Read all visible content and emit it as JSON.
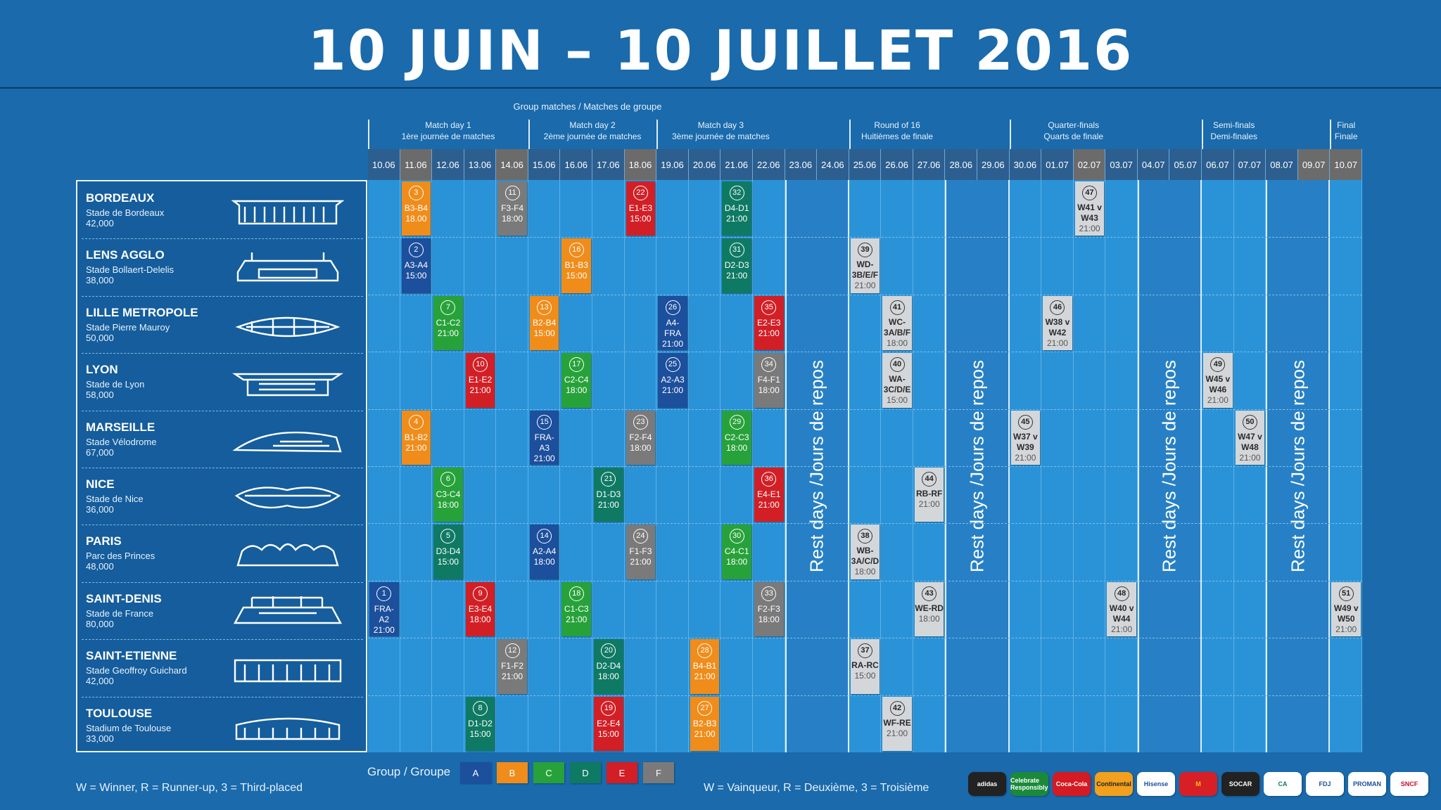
{
  "title": "10 JUIN – 10 JUILLET 2016",
  "group_matches_caption": "Group matches / Matches de groupe",
  "phases": [
    {
      "en": "Match day 1",
      "fr": "1ère journée de matches"
    },
    {
      "en": "Match day 2",
      "fr": "2ème journée de matches"
    },
    {
      "en": "Match day 3",
      "fr": "3ème journée de matches"
    },
    {
      "en": "Round of 16",
      "fr": "Huitièmes de finale"
    },
    {
      "en": "Quarter-finals",
      "fr": "Quarts de finale"
    },
    {
      "en": "Semi-finals",
      "fr": "Demi-finales"
    },
    {
      "en": "Final",
      "fr": "Finale"
    }
  ],
  "dates": [
    "10.06",
    "11.06",
    "12.06",
    "13.06",
    "14.06",
    "15.06",
    "16.06",
    "17.06",
    "18.06",
    "19.06",
    "20.06",
    "21.06",
    "22.06",
    "23.06",
    "24.06",
    "25.06",
    "26.06",
    "27.06",
    "28.06",
    "29.06",
    "30.06",
    "01.07",
    "02.07",
    "03.07",
    "04.07",
    "05.07",
    "06.07",
    "07.07",
    "08.07",
    "09.07",
    "10.07"
  ],
  "rest_days_label": "Rest days /Jours de repos",
  "cities": [
    {
      "name": "BORDEAUX",
      "stadium": "Stade de Bordeaux",
      "capacity": "42,000",
      "icon": "stadium-bordeaux-icon"
    },
    {
      "name": "LENS AGGLO",
      "stadium": "Stade Bollaert-Delelis",
      "capacity": "38,000",
      "icon": "stadium-lens-icon"
    },
    {
      "name": "LILLE METROPOLE",
      "stadium": "Stade Pierre Mauroy",
      "capacity": "50,000",
      "icon": "stadium-lille-icon"
    },
    {
      "name": "LYON",
      "stadium": "Stade de Lyon",
      "capacity": "58,000",
      "icon": "stadium-lyon-icon"
    },
    {
      "name": "MARSEILLE",
      "stadium": "Stade Vélodrome",
      "capacity": "67,000",
      "icon": "stadium-marseille-icon"
    },
    {
      "name": "NICE",
      "stadium": "Stade de Nice",
      "capacity": "36,000",
      "icon": "stadium-nice-icon"
    },
    {
      "name": "PARIS",
      "stadium": "Parc des Princes",
      "capacity": "48,000",
      "icon": "stadium-paris-icon"
    },
    {
      "name": "SAINT-DENIS",
      "stadium": "Stade de France",
      "capacity": "80,000",
      "icon": "stadium-saint-denis-icon"
    },
    {
      "name": "SAINT-ETIENNE",
      "stadium": "Stade Geoffroy Guichard",
      "capacity": "42,000",
      "icon": "stadium-saint-etienne-icon"
    },
    {
      "name": "TOULOUSE",
      "stadium": "Stadium de Toulouse",
      "capacity": "33,000",
      "icon": "stadium-toulouse-icon"
    }
  ],
  "group_colors": {
    "A": "#1c4f9c",
    "B": "#f08c1a",
    "C": "#27a23a",
    "D": "#0f7a63",
    "E": "#d21f26",
    "F": "#7a7a7a"
  },
  "matches": [
    {
      "n": "1",
      "teams": "FRA-A2",
      "time": "21:00",
      "group": "A",
      "city": 7,
      "date": 0
    },
    {
      "n": "2",
      "teams": "A3-A4",
      "time": "15:00",
      "group": "A",
      "city": 1,
      "date": 1
    },
    {
      "n": "3",
      "teams": "B3-B4",
      "time": "18.00",
      "group": "B",
      "city": 0,
      "date": 1
    },
    {
      "n": "4",
      "teams": "B1-B2",
      "time": "21:00",
      "group": "B",
      "city": 4,
      "date": 1
    },
    {
      "n": "5",
      "teams": "D3-D4",
      "time": "15:00",
      "group": "D",
      "city": 6,
      "date": 2
    },
    {
      "n": "6",
      "teams": "C3-C4",
      "time": "18:00",
      "group": "C",
      "city": 5,
      "date": 2
    },
    {
      "n": "7",
      "teams": "C1-C2",
      "time": "21:00",
      "group": "C",
      "city": 2,
      "date": 2
    },
    {
      "n": "8",
      "teams": "D1-D2",
      "time": "15:00",
      "group": "D",
      "city": 9,
      "date": 3
    },
    {
      "n": "9",
      "teams": "E3-E4",
      "time": "18:00",
      "group": "E",
      "city": 7,
      "date": 3
    },
    {
      "n": "10",
      "teams": "E1-E2",
      "time": "21:00",
      "group": "E",
      "city": 3,
      "date": 3
    },
    {
      "n": "11",
      "teams": "F3-F4",
      "time": "18:00",
      "group": "F",
      "city": 0,
      "date": 4
    },
    {
      "n": "12",
      "teams": "F1-F2",
      "time": "21:00",
      "group": "F",
      "city": 8,
      "date": 4
    },
    {
      "n": "13",
      "teams": "B2-B4",
      "time": "15:00",
      "group": "B",
      "city": 2,
      "date": 5
    },
    {
      "n": "14",
      "teams": "A2-A4",
      "time": "18:00",
      "group": "A",
      "city": 6,
      "date": 5
    },
    {
      "n": "15",
      "teams": "FRA-A3",
      "time": "21:00",
      "group": "A",
      "city": 4,
      "date": 5
    },
    {
      "n": "16",
      "teams": "B1-B3",
      "time": "15:00",
      "group": "B",
      "city": 1,
      "date": 6
    },
    {
      "n": "17",
      "teams": "C2-C4",
      "time": "18:00",
      "group": "C",
      "city": 3,
      "date": 6
    },
    {
      "n": "18",
      "teams": "C1-C3",
      "time": "21:00",
      "group": "C",
      "city": 7,
      "date": 6
    },
    {
      "n": "19",
      "teams": "E2-E4",
      "time": "15:00",
      "group": "E",
      "city": 9,
      "date": 7
    },
    {
      "n": "20",
      "teams": "D2-D4",
      "time": "18:00",
      "group": "D",
      "city": 8,
      "date": 7
    },
    {
      "n": "21",
      "teams": "D1-D3",
      "time": "21:00",
      "group": "D",
      "city": 5,
      "date": 7
    },
    {
      "n": "22",
      "teams": "E1-E3",
      "time": "15:00",
      "group": "E",
      "city": 0,
      "date": 8
    },
    {
      "n": "23",
      "teams": "F2-F4",
      "time": "18:00",
      "group": "F",
      "city": 4,
      "date": 8
    },
    {
      "n": "24",
      "teams": "F1-F3",
      "time": "21:00",
      "group": "F",
      "city": 6,
      "date": 8
    },
    {
      "n": "25",
      "teams": "A2-A3",
      "time": "21:00",
      "group": "A",
      "city": 3,
      "date": 9
    },
    {
      "n": "26",
      "teams": "A4-FRA",
      "time": "21:00",
      "group": "A",
      "city": 2,
      "date": 9
    },
    {
      "n": "27",
      "teams": "B2-B3",
      "time": "21:00",
      "group": "B",
      "city": 9,
      "date": 10
    },
    {
      "n": "28",
      "teams": "B4-B1",
      "time": "21:00",
      "group": "B",
      "city": 8,
      "date": 10
    },
    {
      "n": "29",
      "teams": "C2-C3",
      "time": "18:00",
      "group": "C",
      "city": 4,
      "date": 11
    },
    {
      "n": "30",
      "teams": "C4-C1",
      "time": "18:00",
      "group": "C",
      "city": 6,
      "date": 11
    },
    {
      "n": "31",
      "teams": "D2-D3",
      "time": "21:00",
      "group": "D",
      "city": 1,
      "date": 11
    },
    {
      "n": "32",
      "teams": "D4-D1",
      "time": "21:00",
      "group": "D",
      "city": 0,
      "date": 11
    },
    {
      "n": "33",
      "teams": "F2-F3",
      "time": "18:00",
      "group": "F",
      "city": 7,
      "date": 12
    },
    {
      "n": "34",
      "teams": "F4-F1",
      "time": "18:00",
      "group": "F",
      "city": 3,
      "date": 12
    },
    {
      "n": "35",
      "teams": "E2-E3",
      "time": "21:00",
      "group": "E",
      "city": 2,
      "date": 12
    },
    {
      "n": "36",
      "teams": "E4-E1",
      "time": "21:00",
      "group": "E",
      "city": 5,
      "date": 12
    }
  ],
  "knockout": [
    {
      "n": "37",
      "line1": "RA-RC",
      "line2": "",
      "time": "15:00",
      "city": 8,
      "date": 15
    },
    {
      "n": "38",
      "line1": "WB-",
      "line2": "3A/C/D",
      "time": "18:00",
      "city": 6,
      "date": 15
    },
    {
      "n": "39",
      "line1": "WD-",
      "line2": "3B/E/F",
      "time": "21:00",
      "city": 1,
      "date": 15
    },
    {
      "n": "40",
      "line1": "WA-",
      "line2": "3C/D/E",
      "time": "15:00",
      "city": 3,
      "date": 16
    },
    {
      "n": "41",
      "line1": "WC-",
      "line2": "3A/B/F",
      "time": "18:00",
      "city": 2,
      "date": 16
    },
    {
      "n": "42",
      "line1": "WF-RE",
      "line2": "",
      "time": "21:00",
      "city": 9,
      "date": 16
    },
    {
      "n": "43",
      "line1": "WE-RD",
      "line2": "",
      "time": "18:00",
      "city": 7,
      "date": 17
    },
    {
      "n": "44",
      "line1": "RB-RF",
      "line2": "",
      "time": "21:00",
      "city": 5,
      "date": 17
    },
    {
      "n": "45",
      "line1": "W37 v",
      "line2": "W39",
      "time": "21:00",
      "city": 4,
      "date": 20
    },
    {
      "n": "46",
      "line1": "W38 v",
      "line2": "W42",
      "time": "21:00",
      "city": 2,
      "date": 21
    },
    {
      "n": "47",
      "line1": "W41 v",
      "line2": "W43",
      "time": "21:00",
      "city": 0,
      "date": 22
    },
    {
      "n": "48",
      "line1": "W40 v",
      "line2": "W44",
      "time": "21:00",
      "city": 7,
      "date": 23
    },
    {
      "n": "49",
      "line1": "W45 v",
      "line2": "W46",
      "time": "21:00",
      "city": 3,
      "date": 26
    },
    {
      "n": "50",
      "line1": "W47 v",
      "line2": "W48",
      "time": "21:00",
      "city": 4,
      "date": 27
    },
    {
      "n": "51",
      "line1": "W49 v",
      "line2": "W50",
      "time": "21:00",
      "city": 7,
      "date": 30
    }
  ],
  "legend": {
    "group_label": "Group / Groupe",
    "groups": [
      "A",
      "B",
      "C",
      "D",
      "E",
      "F"
    ],
    "en": "W = Winner, R = Runner-up, 3 = Third-placed",
    "fr": "W = Vainqueur, R = Deuxième, 3 = Troisième"
  },
  "sponsors": [
    {
      "label": "adidas",
      "bg": "#222222",
      "fg": "#ffffff",
      "icon": "adidas-logo-icon"
    },
    {
      "label": "Celebrate Responsibly",
      "bg": "#1a8a3a",
      "fg": "#ffffff",
      "icon": "carlsberg-logo-icon"
    },
    {
      "label": "Coca-Cola",
      "bg": "#d41a23",
      "fg": "#ffffff",
      "icon": "coca-cola-logo-icon"
    },
    {
      "label": "Continental",
      "bg": "#f2a01d",
      "fg": "#222222",
      "icon": "continental-logo-icon"
    },
    {
      "label": "Hisense",
      "bg": "#ffffff",
      "fg": "#1a4f9c",
      "icon": "hisense-logo-icon"
    },
    {
      "label": "M",
      "bg": "#d91f26",
      "fg": "#f7c61b",
      "icon": "mcdonalds-logo-icon"
    },
    {
      "label": "SOCAR",
      "bg": "#222222",
      "fg": "#ffffff",
      "icon": "socar-logo-icon"
    },
    {
      "label": "CA",
      "bg": "#ffffff",
      "fg": "#0b7a6a",
      "icon": "credit-agricole-logo-icon"
    },
    {
      "label": "FDJ",
      "bg": "#ffffff",
      "fg": "#1a4f9c",
      "icon": "fdj-logo-icon"
    },
    {
      "label": "PROMAN",
      "bg": "#ffffff",
      "fg": "#1a4f9c",
      "icon": "proman-logo-icon"
    },
    {
      "label": "SNCF",
      "bg": "#ffffff",
      "fg": "#c8102e",
      "icon": "sncf-logo-icon"
    }
  ]
}
